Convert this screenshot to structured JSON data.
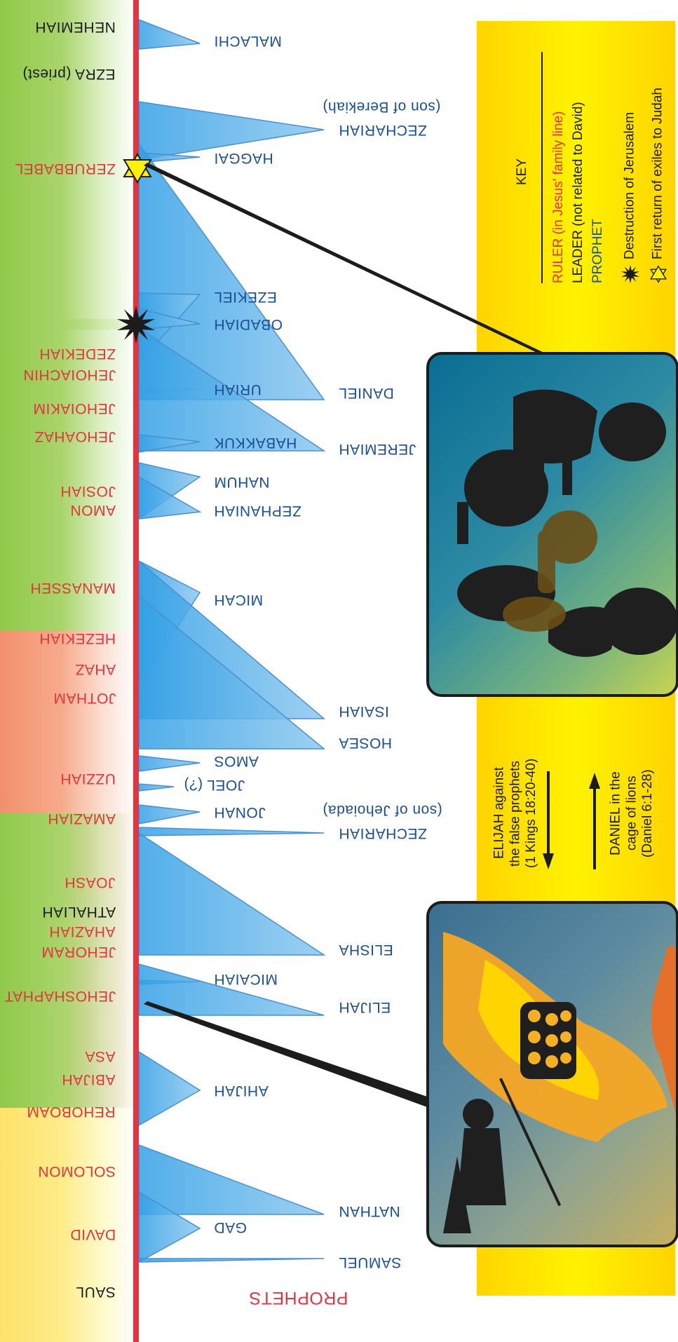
{
  "title": "PROPHETS",
  "rulers": [
    {
      "name": "NEHEMIAH",
      "type": "leader"
    },
    {
      "name": "EZRA (priest)",
      "type": "leader"
    },
    {
      "name": "ZERUBBABEL",
      "type": "ruler"
    },
    {
      "name": "ZEDEKIAH",
      "type": "ruler"
    },
    {
      "name": "JEHOIACHIN",
      "type": "ruler"
    },
    {
      "name": "JEHOIAKIM",
      "type": "ruler"
    },
    {
      "name": "JEHOAHAZ",
      "type": "ruler"
    },
    {
      "name": "JOSIAH",
      "type": "ruler"
    },
    {
      "name": "AMON",
      "type": "ruler"
    },
    {
      "name": "MANASSEH",
      "type": "ruler"
    },
    {
      "name": "HEZEKIAH",
      "type": "ruler"
    },
    {
      "name": "AHAZ",
      "type": "ruler"
    },
    {
      "name": "JOTHAM",
      "type": "ruler"
    },
    {
      "name": "UZZIAH",
      "type": "ruler"
    },
    {
      "name": "AMAZIAH",
      "type": "ruler"
    },
    {
      "name": "JOASH",
      "type": "ruler"
    },
    {
      "name": "ATHALIAH",
      "type": "leader"
    },
    {
      "name": "AHAZIAH",
      "type": "ruler"
    },
    {
      "name": "JEHORAM",
      "type": "ruler"
    },
    {
      "name": "JEHOSHAPHAT",
      "type": "ruler"
    },
    {
      "name": "ASA",
      "type": "ruler"
    },
    {
      "name": "ABIJAH",
      "type": "ruler"
    },
    {
      "name": "REHOBOAM",
      "type": "ruler"
    },
    {
      "name": "SOLOMON",
      "type": "ruler"
    },
    {
      "name": "DAVID",
      "type": "ruler"
    },
    {
      "name": "SAUL",
      "type": "leader"
    }
  ],
  "prophets": [
    {
      "name": "MALACHI"
    },
    {
      "name": "ZECHARIAH",
      "note": "(son of Berekiah)"
    },
    {
      "name": "HAGGAI"
    },
    {
      "name": "EZEKIEL"
    },
    {
      "name": "OBADIAH"
    },
    {
      "name": "URIAH"
    },
    {
      "name": "DANIEL"
    },
    {
      "name": "HABAKKUK"
    },
    {
      "name": "JEREMIAH"
    },
    {
      "name": "NAHUM"
    },
    {
      "name": "ZEPHANIAH"
    },
    {
      "name": "MICAH"
    },
    {
      "name": "ISAIAH"
    },
    {
      "name": "HOSEA"
    },
    {
      "name": "AMOS"
    },
    {
      "name": "JOEL (?)"
    },
    {
      "name": "JONAH"
    },
    {
      "name": "ZECHARIAH",
      "note": "(son of Jehoiada)"
    },
    {
      "name": "ELISHA"
    },
    {
      "name": "MICAIAH"
    },
    {
      "name": "ELIJAH"
    },
    {
      "name": "AHIJAH"
    },
    {
      "name": "NATHAN"
    },
    {
      "name": "GAD"
    },
    {
      "name": "SAMUEL"
    }
  ],
  "key": {
    "title": "KEY",
    "ruler": "RULER (in Jesus' family line)",
    "leader": "LEADER (not related to David)",
    "prophet": "PROPHET",
    "destruction": "Destruction of Jerusalem",
    "return": "First return of exiles to Judah"
  },
  "captions": {
    "elijah": [
      "ELIJAH against",
      "the false prophets",
      "(1 Kings 18:20-40)"
    ],
    "daniel": [
      "DANIEL in the",
      "cage of lions",
      "(Daniel 6:1-28)"
    ]
  },
  "colors": {
    "ruler": "#e3343f",
    "leader": "#1c1c1c",
    "prophet": "#1a4f97",
    "spine": "#e3343f",
    "triangle": "#6fb6e8",
    "key_background": "#fff200",
    "band_green": "#8cc63f",
    "band_orange": "#f4956b",
    "band_yellow": "#fff36b"
  },
  "icons": [
    "star-burst-icon",
    "star-of-david-icon",
    "arrow-down-icon",
    "arrow-up-icon"
  ]
}
